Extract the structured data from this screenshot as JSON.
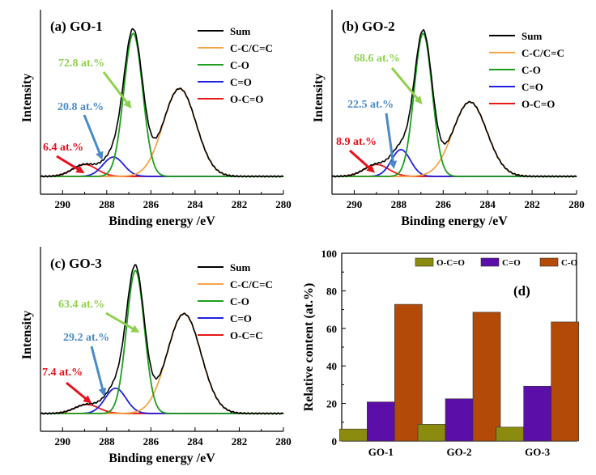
{
  "chart_data": [
    {
      "id": "a",
      "type": "line",
      "title": "(a) GO-1",
      "xlabel": "Binding energy /eV",
      "ylabel": "Intensity",
      "xlim": [
        291,
        280
      ],
      "xticks": [
        290,
        288,
        286,
        284,
        282,
        280
      ],
      "legend": {
        "placement": "top-right",
        "entries": [
          "Sum",
          "C-C/C=C",
          "C-O",
          "C=O",
          "O-C=O"
        ]
      },
      "annotations": [
        {
          "text": "72.8 at.%",
          "color": "#8fd14f"
        },
        {
          "text": "20.8 at.%",
          "color": "#4a8ac8"
        },
        {
          "text": "6.4 at.%",
          "color": "#e8101a"
        }
      ],
      "peaks": [
        {
          "component": "C-C/C=C",
          "center": 284.7,
          "height": 0.59,
          "fwhm": 1.75
        },
        {
          "component": "C-O",
          "center": 286.8,
          "height": 0.96,
          "fwhm": 1.0
        },
        {
          "component": "C=O",
          "center": 287.7,
          "height": 0.13,
          "fwhm": 1.1
        },
        {
          "component": "O-C=O",
          "center": 289.0,
          "height": 0.08,
          "fwhm": 1.3
        }
      ]
    },
    {
      "id": "b",
      "type": "line",
      "title": "(b) GO-2",
      "xlabel": "Binding energy /eV",
      "ylabel": "Intensity",
      "xlim": [
        291,
        280
      ],
      "xticks": [
        290,
        288,
        286,
        284,
        282,
        280
      ],
      "legend": {
        "placement": "top-right",
        "entries": [
          "Sum",
          "C-C/C=C",
          "C-O",
          "C=O",
          "O-C=O"
        ]
      },
      "annotations": [
        {
          "text": "68.6 at.%",
          "color": "#8fd14f"
        },
        {
          "text": "22.5 at.%",
          "color": "#4a8ac8"
        },
        {
          "text": "8.9 at.%",
          "color": "#e8101a"
        }
      ],
      "peaks": [
        {
          "component": "C-C/C=C",
          "center": 284.8,
          "height": 0.5,
          "fwhm": 1.8
        },
        {
          "component": "C-O",
          "center": 286.9,
          "height": 0.96,
          "fwhm": 0.95
        },
        {
          "component": "C=O",
          "center": 287.9,
          "height": 0.18,
          "fwhm": 1.0
        },
        {
          "component": "O-C=O",
          "center": 289.0,
          "height": 0.08,
          "fwhm": 1.3
        }
      ]
    },
    {
      "id": "c",
      "type": "line",
      "title": "(c) GO-3",
      "xlabel": "Binding energy /eV",
      "ylabel": "Intensity",
      "xlim": [
        291,
        280
      ],
      "xticks": [
        290,
        288,
        286,
        284,
        282,
        280
      ],
      "legend": {
        "placement": "top-right",
        "entries": [
          "Sum",
          "C-C/C=C",
          "C-O",
          "C=O",
          "O-C=C"
        ]
      },
      "annotations": [
        {
          "text": "63.4 at.%",
          "color": "#8fd14f"
        },
        {
          "text": "29.2 at.%",
          "color": "#4a8ac8"
        },
        {
          "text": "7.4 at.%",
          "color": "#e8101a"
        }
      ],
      "peaks": [
        {
          "component": "C-C/C=C",
          "center": 284.5,
          "height": 0.67,
          "fwhm": 1.8
        },
        {
          "component": "C-O",
          "center": 286.7,
          "height": 0.96,
          "fwhm": 0.95
        },
        {
          "component": "C=O",
          "center": 287.6,
          "height": 0.17,
          "fwhm": 1.1
        },
        {
          "component": "O-C=C",
          "center": 288.9,
          "height": 0.06,
          "fwhm": 1.3
        }
      ]
    },
    {
      "id": "d",
      "type": "bar",
      "title": "(d)",
      "xlabel": "",
      "ylabel": "Relative content (at.%)",
      "ylim": [
        0,
        100
      ],
      "yticks": [
        0,
        20,
        40,
        60,
        80,
        100
      ],
      "categories": [
        "GO-1",
        "GO-2",
        "GO-3"
      ],
      "legend_placement": "top",
      "series": [
        {
          "name": "O-C=O",
          "values": [
            6.4,
            8.9,
            7.4
          ],
          "color": "#8b8b10"
        },
        {
          "name": "C=O",
          "values": [
            20.8,
            22.5,
            29.2
          ],
          "color": "#5b0fa8"
        },
        {
          "name": "C-O",
          "values": [
            72.8,
            68.6,
            63.4
          ],
          "color": "#b34a08"
        }
      ]
    }
  ],
  "colors": {
    "Sum": "#000000",
    "C-C/C=C": "#f5a447",
    "C-O": "#1e9e1e",
    "C=O": "#2020e0",
    "O-C=O": "#e81818",
    "O-C=C": "#e81818",
    "axis": "#000000"
  }
}
